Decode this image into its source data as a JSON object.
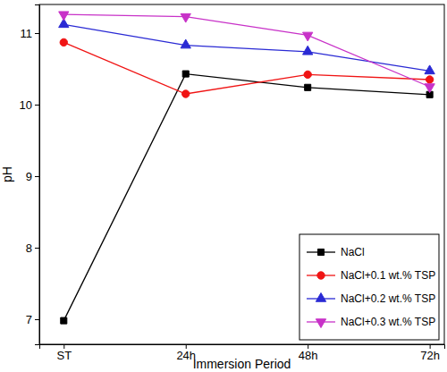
{
  "chart_data": {
    "type": "line",
    "x_label": "Immersion Period",
    "y_label": "pH",
    "categories": [
      "ST",
      "24h",
      "48h",
      "72h"
    ],
    "ylim": [
      6.65,
      11.4
    ],
    "yticks": [
      7,
      8,
      9,
      10,
      11
    ],
    "legend": "lower right",
    "series": [
      {
        "name": "NaCl",
        "color": "#000000",
        "marker": "square",
        "line_style": "solid",
        "values": [
          6.98,
          10.43,
          10.24,
          10.14
        ]
      },
      {
        "name": "NaCl+0.1 wt.% TSP",
        "color": "#f01414",
        "marker": "circle",
        "line_style": "solid",
        "values": [
          10.87,
          10.15,
          10.42,
          10.35
        ]
      },
      {
        "name": "NaCl+0.2 wt.% TSP",
        "color": "#2a2ad4",
        "marker": "triangle-up",
        "line_style": "solid",
        "values": [
          11.12,
          10.83,
          10.74,
          10.47
        ]
      },
      {
        "name": "NaCl+0.3 wt.% TSP",
        "color": "#c832c8",
        "marker": "triangle-down",
        "line_style": "solid",
        "values": [
          11.26,
          11.23,
          10.97,
          10.25
        ]
      }
    ]
  }
}
